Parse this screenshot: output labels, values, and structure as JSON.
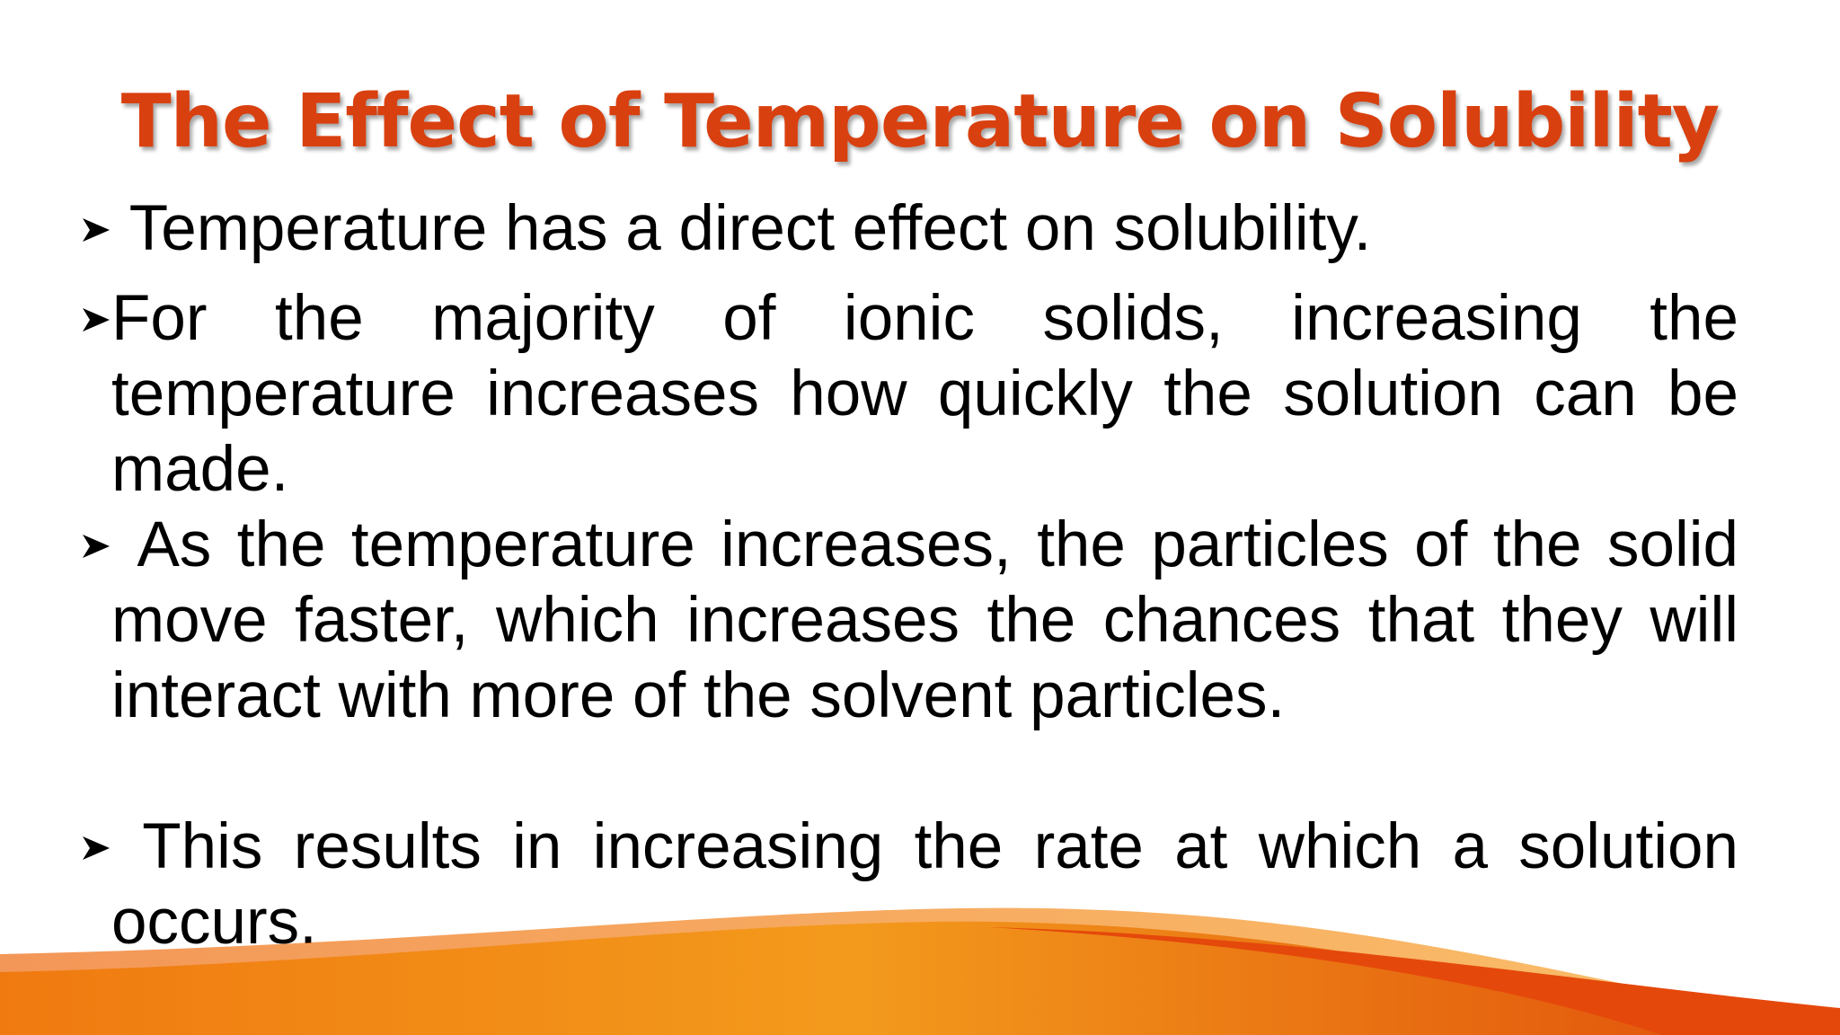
{
  "title": "The Effect of Temperature on Solubility",
  "bullets": [
    "Temperature has a direct effect on solubility.",
    "For the majority of ionic solids, increasing the temperature increases how quickly the solution can be made.",
    "As the temperature increases, the particles of the solid move faster, which increases the chances that they will interact with more of the solvent particles.",
    "This results in increasing the rate at which a solution occurs."
  ]
}
